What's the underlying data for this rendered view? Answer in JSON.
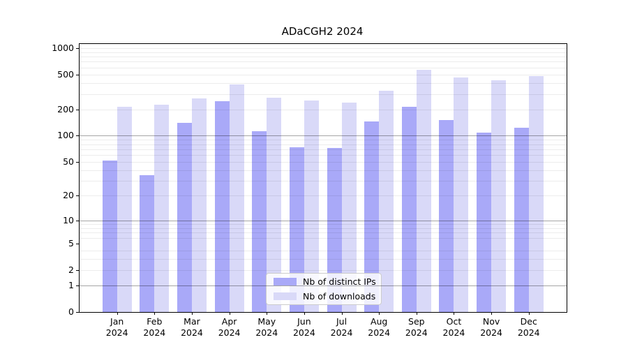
{
  "chart_data": {
    "type": "bar",
    "title": "ADaCGH2 2024",
    "xlabel": "",
    "ylabel": "",
    "categories": [
      "Jan",
      "Feb",
      "Mar",
      "Apr",
      "May",
      "Jun",
      "Jul",
      "Aug",
      "Sep",
      "Oct",
      "Nov",
      "Dec"
    ],
    "x_year_label": "2024",
    "series": [
      {
        "name": "Nb of distinct IPs",
        "color": "#a9a9f8",
        "values": [
          52,
          35,
          140,
          250,
          112,
          74,
          72,
          146,
          215,
          150,
          108,
          124
        ]
      },
      {
        "name": "Nb of downloads",
        "color": "#d9d9f8",
        "values": [
          215,
          225,
          268,
          385,
          270,
          255,
          240,
          330,
          565,
          462,
          430,
          480
        ]
      }
    ],
    "y_axis": {
      "scale": "log1p",
      "tick_labels": [
        "0",
        "1",
        "2",
        "5",
        "10",
        "20",
        "50",
        "100",
        "200",
        "500",
        "1000"
      ],
      "tick_values": [
        0,
        1,
        2,
        5,
        10,
        20,
        50,
        100,
        200,
        500,
        1000
      ],
      "ylim": [
        0,
        1110
      ],
      "grid": true,
      "grid_minor_values": [
        2,
        3,
        4,
        6,
        7,
        8,
        9,
        20,
        30,
        40,
        50,
        60,
        70,
        80,
        90,
        200,
        300,
        400,
        500,
        600,
        700,
        800,
        900,
        1000
      ],
      "grid_major_values": [
        1,
        10,
        100
      ]
    },
    "legend_position": "bottom-center"
  }
}
